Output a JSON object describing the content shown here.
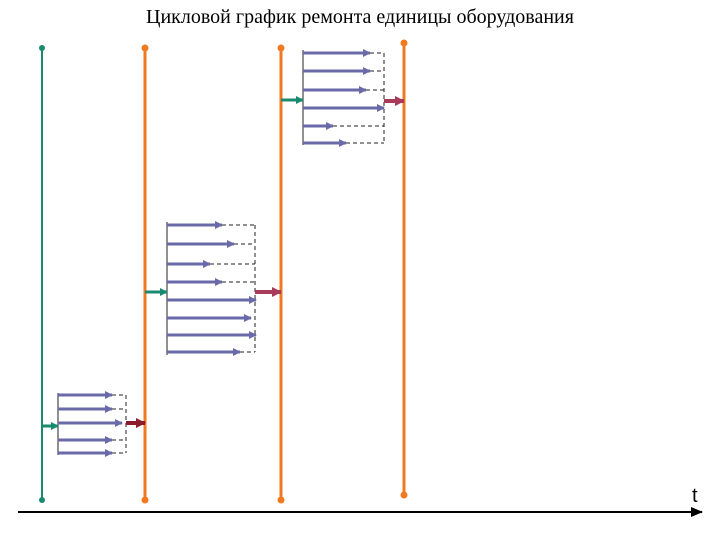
{
  "title": "Цикловой график ремонта единицы оборудования",
  "axis": {
    "label": "t"
  },
  "colors": {
    "green": "#1a8a6e",
    "orange": "#f07a20",
    "operation": "#6a6aa8",
    "maroon_arrow": "#8b1c2c",
    "crimson_arrow": "#a83a5a",
    "dashed": "#222222",
    "axis": "#000000"
  },
  "groups": [
    {
      "name": "group-1",
      "operations": 5,
      "output_arrow_color": "maroon_arrow"
    },
    {
      "name": "group-2",
      "operations": 8,
      "output_arrow_color": "crimson_arrow"
    },
    {
      "name": "group-3",
      "operations": 6,
      "output_arrow_color": "crimson_arrow"
    }
  ]
}
